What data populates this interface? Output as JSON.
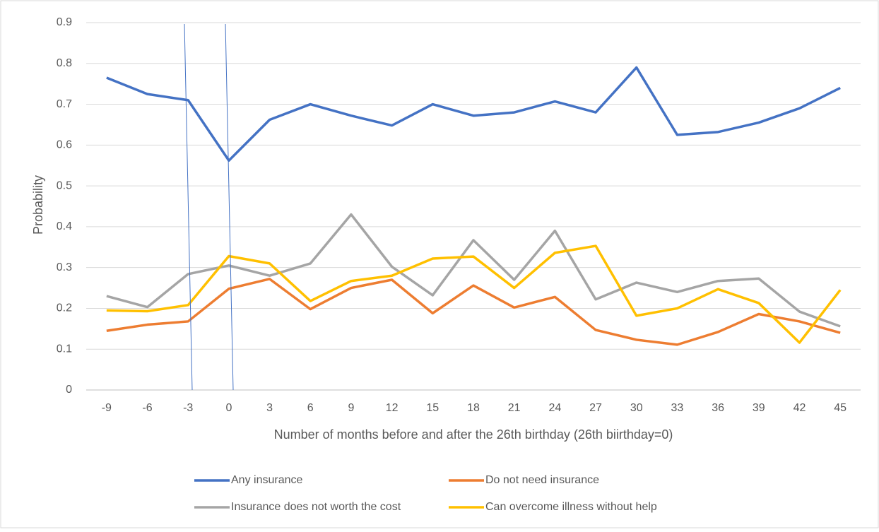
{
  "chart_data": {
    "type": "line",
    "x_label": "Number of months before and after the 26th birthday (26th biirthday=0)",
    "y_label": "Probability",
    "categories": [
      "-9",
      "-6",
      "-3",
      "0",
      "3",
      "6",
      "9",
      "12",
      "15",
      "18",
      "21",
      "24",
      "27",
      "30",
      "33",
      "36",
      "39",
      "42",
      "45"
    ],
    "series": [
      {
        "name": "Any insurance",
        "color": "#4472c4",
        "values": [
          0.765,
          0.725,
          0.71,
          0.562,
          0.662,
          0.7,
          0.672,
          0.648,
          0.7,
          0.672,
          0.68,
          0.707,
          0.68,
          0.79,
          0.625,
          0.632,
          0.655,
          0.69,
          0.74
        ]
      },
      {
        "name": "Do not need insurance",
        "color": "#ed7d31",
        "values": [
          0.145,
          0.16,
          0.168,
          0.248,
          0.272,
          0.198,
          0.25,
          0.27,
          0.188,
          0.256,
          0.202,
          0.228,
          0.147,
          0.123,
          0.111,
          0.142,
          0.186,
          0.168,
          0.14
        ]
      },
      {
        "name": "Insurance does not worth the cost",
        "color": "#a5a5a5",
        "values": [
          0.23,
          0.203,
          0.284,
          0.305,
          0.28,
          0.31,
          0.43,
          0.302,
          0.232,
          0.367,
          0.27,
          0.39,
          0.222,
          0.263,
          0.24,
          0.267,
          0.273,
          0.192,
          0.156
        ]
      },
      {
        "name": "Can overcome illness without help",
        "color": "#ffc000",
        "values": [
          0.195,
          0.193,
          0.208,
          0.328,
          0.31,
          0.218,
          0.267,
          0.28,
          0.322,
          0.327,
          0.25,
          0.336,
          0.353,
          0.182,
          0.2,
          0.247,
          0.213,
          0.116,
          0.245
        ]
      }
    ],
    "ylim": [
      0,
      0.9
    ],
    "yticks": [
      0,
      0.1,
      0.2,
      0.3,
      0.4,
      0.5,
      0.6,
      0.7,
      0.8,
      0.9
    ],
    "grid": true
  }
}
